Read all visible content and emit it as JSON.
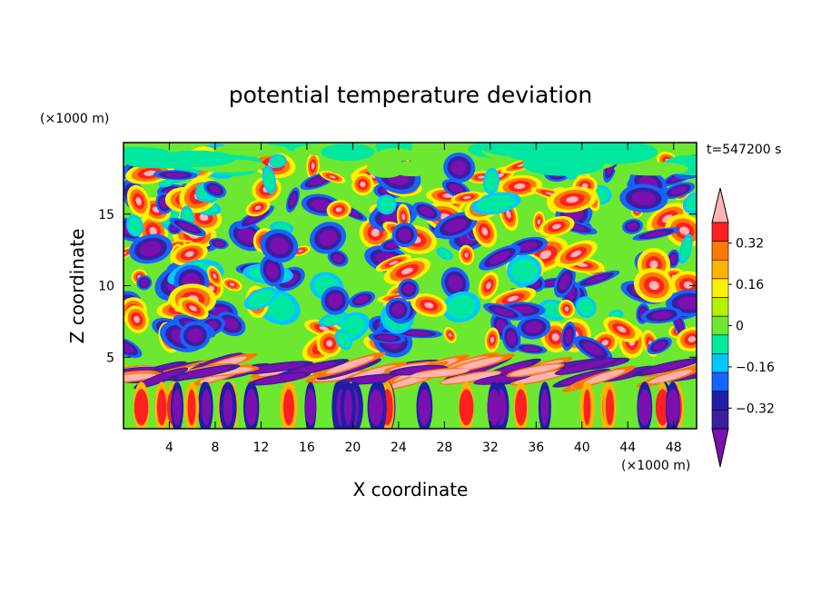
{
  "chart_data": {
    "type": "heatmap",
    "title": "potential temperature deviation",
    "xlabel": "X coordinate",
    "ylabel": "Z coordinate",
    "x_unit": "(×1000 m)",
    "y_unit": "(×1000 m)",
    "time_label": "t=547200 s",
    "xlim": [
      0,
      50
    ],
    "ylim": [
      0,
      20
    ],
    "x_ticks": [
      "4",
      "8",
      "12",
      "16",
      "20",
      "24",
      "28",
      "32",
      "36",
      "40",
      "44",
      "48"
    ],
    "x_tick_values": [
      4,
      8,
      12,
      16,
      20,
      24,
      28,
      32,
      36,
      40,
      44,
      48
    ],
    "y_ticks": [
      "5",
      "10",
      "15"
    ],
    "y_tick_values": [
      5,
      10,
      15
    ],
    "colorbar": {
      "levels": [
        -0.48,
        -0.4,
        -0.32,
        -0.24,
        -0.16,
        -0.08,
        0,
        0.08,
        0.16,
        0.24,
        0.32,
        0.4,
        0.48
      ],
      "labels": [
        "0.32",
        "0.16",
        "0",
        "−0.16",
        "−0.32"
      ],
      "label_values": [
        0.32,
        0.16,
        0,
        -0.16,
        -0.32
      ],
      "colors": [
        "#7a10b0",
        "#3c1ea0",
        "#1e1ea8",
        "#1464ff",
        "#00c8ff",
        "#00e8a0",
        "#6ce830",
        "#b4f000",
        "#fff000",
        "#ffb400",
        "#ff7800",
        "#ff2020",
        "#ffb4b4"
      ]
    }
  }
}
